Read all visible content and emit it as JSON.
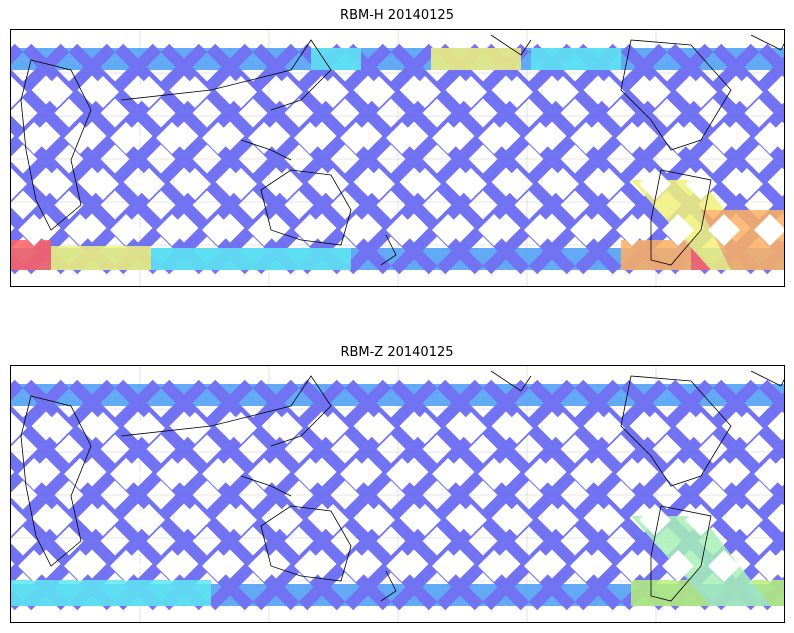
{
  "panels": [
    {
      "title": "RBM-H 20140125",
      "band_color": "#6a6cf2",
      "hot_zones": [
        {
          "color": "#ffe066",
          "desc": "yellow"
        },
        {
          "color": "#ff6a5a",
          "desc": "red"
        },
        {
          "color": "#5ee0f0",
          "desc": "cyan"
        }
      ]
    },
    {
      "title": "RBM-Z 20140125",
      "band_color": "#6a6cf2",
      "hot_zones": [
        {
          "color": "#b7f07a",
          "desc": "light-green"
        },
        {
          "color": "#5ee0f0",
          "desc": "cyan"
        }
      ]
    }
  ],
  "colors": {
    "swath_blue": "#6a6cf2",
    "swath_light": "#5aa6f6",
    "cyan": "#5ee8f2",
    "yellow": "#f2f27a",
    "orange": "#ffb061",
    "red": "#ff6060",
    "coast": "#000000",
    "grid": "#cccccc"
  }
}
